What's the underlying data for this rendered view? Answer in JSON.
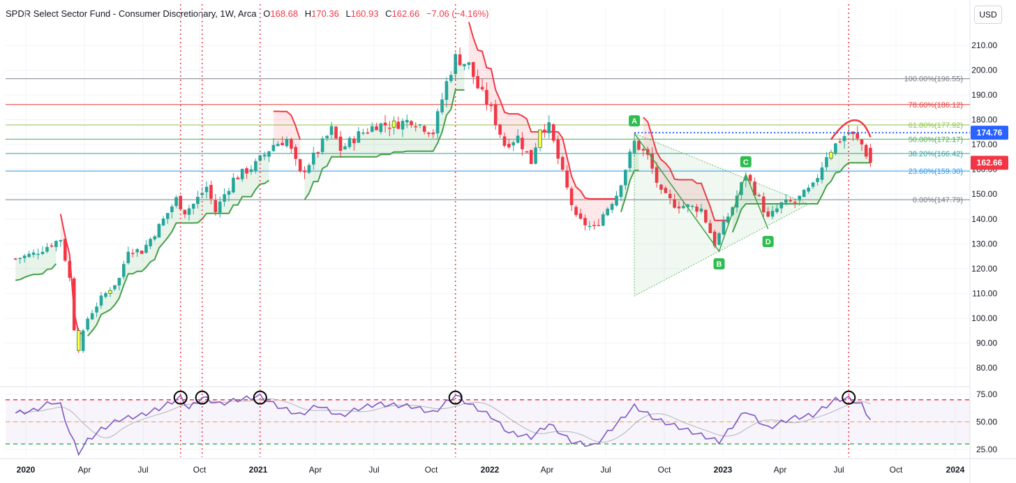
{
  "header": {
    "symbol": "SPDR Select Sector Fund - Consumer Discretionary, 1W, Arca",
    "open_label": "O",
    "open": "168.68",
    "high_label": "H",
    "high": "170.36",
    "low_label": "L",
    "low": "160.93",
    "close_label": "C",
    "close": "162.66",
    "change": "−7.06 (−4.16%)"
  },
  "currency_button": "USD",
  "colors": {
    "up": "#26a69a",
    "down": "#f23645",
    "highlight": "#ffff44",
    "stop_up": "#43a047",
    "stop_down": "#f23645",
    "rsi_line": "#7e57c2",
    "event_line": "#f23645"
  },
  "chart_data": [
    {
      "type": "candlestick",
      "title": "SPDR Select Sector Fund - Consumer Discretionary, 1W, Arca",
      "x_axis_ticks": [
        "2020",
        "Apr",
        "Jul",
        "Oct",
        "2021",
        "Apr",
        "Jul",
        "Oct",
        "2022",
        "Apr",
        "Jul",
        "Oct",
        "2023",
        "Apr",
        "Jul",
        "Oct",
        "2024"
      ],
      "x_tick_dates": [
        "2020-01-01",
        "2020-04-01",
        "2020-07-01",
        "2020-10-01",
        "2021-01-01",
        "2021-04-01",
        "2021-07-01",
        "2021-10-01",
        "2022-01-01",
        "2022-04-01",
        "2022-07-01",
        "2022-10-01",
        "2023-01-01",
        "2023-04-01",
        "2023-07-01",
        "2023-10-01",
        "2024-01-01"
      ],
      "y_axis_ticks": [
        80,
        90,
        100,
        110,
        120,
        130,
        140,
        150,
        160,
        170,
        180,
        190,
        200,
        210
      ],
      "ylim": [
        73,
        217
      ],
      "grid": true,
      "price_path_weekly": [
        [
          "2019-12-16",
          124
        ],
        [
          "2020-01-13",
          126
        ],
        [
          "2020-02-10",
          130
        ],
        [
          "2020-02-24",
          132
        ],
        [
          "2020-03-09",
          116
        ],
        [
          "2020-03-16",
          96
        ],
        [
          "2020-03-23",
          88
        ],
        [
          "2020-04-06",
          100
        ],
        [
          "2020-04-27",
          108
        ],
        [
          "2020-05-25",
          116
        ],
        [
          "2020-06-08",
          128
        ],
        [
          "2020-06-29",
          127
        ],
        [
          "2020-07-27",
          137
        ],
        [
          "2020-08-24",
          148
        ],
        [
          "2020-09-07",
          143
        ],
        [
          "2020-09-21",
          146
        ],
        [
          "2020-10-12",
          153
        ],
        [
          "2020-10-26",
          143
        ],
        [
          "2020-11-09",
          150
        ],
        [
          "2020-11-23",
          156
        ],
        [
          "2020-12-28",
          162
        ],
        [
          "2021-01-25",
          170
        ],
        [
          "2021-02-15",
          172
        ],
        [
          "2021-03-08",
          158
        ],
        [
          "2021-03-29",
          165
        ],
        [
          "2021-04-26",
          176
        ],
        [
          "2021-05-10",
          168
        ],
        [
          "2021-06-07",
          174
        ],
        [
          "2021-07-05",
          178
        ],
        [
          "2021-08-02",
          178
        ],
        [
          "2021-08-30",
          180
        ],
        [
          "2021-10-04",
          175
        ],
        [
          "2021-10-25",
          195
        ],
        [
          "2021-11-08",
          205
        ],
        [
          "2021-11-29",
          202
        ],
        [
          "2021-12-13",
          193
        ],
        [
          "2022-01-03",
          184
        ],
        [
          "2022-01-24",
          170
        ],
        [
          "2022-02-14",
          173
        ],
        [
          "2022-03-07",
          163
        ],
        [
          "2022-03-21",
          177
        ],
        [
          "2022-04-04",
          177
        ],
        [
          "2022-04-25",
          158
        ],
        [
          "2022-05-16",
          140
        ],
        [
          "2022-06-13",
          136
        ],
        [
          "2022-06-27",
          142
        ],
        [
          "2022-07-18",
          150
        ],
        [
          "2022-08-15",
          171
        ],
        [
          "2022-09-05",
          165
        ],
        [
          "2022-09-26",
          150
        ],
        [
          "2022-10-17",
          146
        ],
        [
          "2022-11-07",
          145
        ],
        [
          "2022-11-28",
          144
        ],
        [
          "2022-12-19",
          130
        ],
        [
          "2023-01-16",
          145
        ],
        [
          "2023-02-06",
          158
        ],
        [
          "2023-02-27",
          148
        ],
        [
          "2023-03-13",
          140
        ],
        [
          "2023-04-03",
          146
        ],
        [
          "2023-04-24",
          147
        ],
        [
          "2023-05-22",
          153
        ],
        [
          "2023-06-12",
          166
        ],
        [
          "2023-07-03",
          172
        ],
        [
          "2023-07-17",
          175
        ],
        [
          "2023-08-07",
          170
        ],
        [
          "2023-08-21",
          162.66
        ]
      ],
      "supertrend_color_flips": [
        "2020-02-24",
        "2020-04-06",
        "2021-01-25",
        "2021-03-15",
        "2021-11-29",
        "2022-07-25",
        "2022-08-29",
        "2023-01-16"
      ],
      "highlighted_candles": [
        "2020-03-23",
        "2020-05-11",
        "2021-08-02",
        "2022-03-21",
        "2023-06-19"
      ],
      "fibonacci_levels": [
        {
          "level": 196.55,
          "label": "100.00%(196.55)",
          "color": "#787b86"
        },
        {
          "level": 186.12,
          "label": "78.60%(186.12)",
          "color": "#e53935"
        },
        {
          "level": 177.92,
          "label": "61.80%(177.92)",
          "color": "#8bc34a"
        },
        {
          "level": 172.17,
          "label": "50.00%(172.17)",
          "color": "#4caf50"
        },
        {
          "level": 166.42,
          "label": "38.20%(166.42)",
          "color": "#26a69a"
        },
        {
          "level": 159.3,
          "label": "23.60%(159.30)",
          "color": "#2196f3"
        },
        {
          "level": 147.79,
          "label": "0.00%(147.79)",
          "color": "#787b86"
        }
      ],
      "horizontal_line": {
        "value": 174.76,
        "label": "174.76",
        "color": "#2962ff"
      },
      "last_price": {
        "value": 162.66,
        "label": "162.66",
        "color": "#f23645"
      },
      "xabcd_points": [
        {
          "label": "A",
          "date": "2022-08-15",
          "value": 174.5
        },
        {
          "label": "B",
          "date": "2022-12-26",
          "value": 127
        },
        {
          "label": "C",
          "date": "2023-02-06",
          "value": 158
        },
        {
          "label": "D",
          "date": "2023-03-13",
          "value": 136
        }
      ],
      "triangle_bottom": {
        "date": "2022-08-15",
        "value": 109
      },
      "arc": {
        "start": [
          "2023-06-19",
          172
        ],
        "peak": [
          "2023-07-31",
          181
        ],
        "end": [
          "2023-08-21",
          173
        ]
      }
    },
    {
      "type": "line",
      "name": "RSI",
      "y_axis_ticks": [
        25,
        50,
        75
      ],
      "ylim": [
        18,
        80
      ],
      "reference_levels": [
        30,
        50,
        70
      ],
      "values_weekly": [
        [
          "2019-12-16",
          58
        ],
        [
          "2020-01-13",
          60
        ],
        [
          "2020-02-10",
          68
        ],
        [
          "2020-02-24",
          65
        ],
        [
          "2020-03-09",
          40
        ],
        [
          "2020-03-23",
          22
        ],
        [
          "2020-04-06",
          33
        ],
        [
          "2020-04-27",
          43
        ],
        [
          "2020-05-25",
          52
        ],
        [
          "2020-06-29",
          56
        ],
        [
          "2020-07-27",
          62
        ],
        [
          "2020-08-31",
          72
        ],
        [
          "2020-09-14",
          62
        ],
        [
          "2020-10-05",
          72
        ],
        [
          "2020-11-02",
          66
        ],
        [
          "2020-11-30",
          70
        ],
        [
          "2021-01-04",
          73
        ],
        [
          "2021-02-01",
          64
        ],
        [
          "2021-03-08",
          56
        ],
        [
          "2021-04-05",
          65
        ],
        [
          "2021-05-10",
          55
        ],
        [
          "2021-06-07",
          62
        ],
        [
          "2021-07-05",
          66
        ],
        [
          "2021-08-30",
          64
        ],
        [
          "2021-10-04",
          58
        ],
        [
          "2021-11-08",
          74
        ],
        [
          "2021-11-29",
          66
        ],
        [
          "2022-01-03",
          55
        ],
        [
          "2022-01-31",
          40
        ],
        [
          "2022-03-07",
          36
        ],
        [
          "2022-04-04",
          48
        ],
        [
          "2022-05-09",
          32
        ],
        [
          "2022-06-13",
          28
        ],
        [
          "2022-08-15",
          64
        ],
        [
          "2022-09-19",
          52
        ],
        [
          "2022-10-24",
          45
        ],
        [
          "2022-12-26",
          32
        ],
        [
          "2023-02-06",
          60
        ],
        [
          "2023-03-13",
          44
        ],
        [
          "2023-04-17",
          53
        ],
        [
          "2023-05-22",
          56
        ],
        [
          "2023-06-26",
          70
        ],
        [
          "2023-07-17",
          71
        ],
        [
          "2023-08-07",
          65
        ],
        [
          "2023-08-21",
          52
        ]
      ],
      "signal_circles": [
        "2020-08-31",
        "2020-10-05",
        "2021-01-04",
        "2021-11-08",
        "2023-07-17"
      ]
    }
  ],
  "event_lines": [
    "2020-08-31",
    "2020-10-05",
    "2021-01-04",
    "2021-11-08",
    "2023-07-17"
  ]
}
